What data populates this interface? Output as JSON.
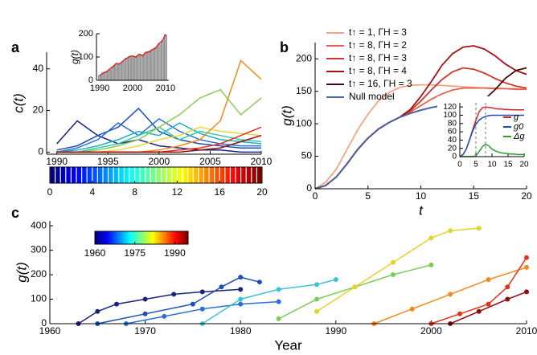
{
  "chart_data": [
    {
      "type": "line",
      "label": "a",
      "y_label": "c(t)",
      "x": [
        1990,
        1992,
        1994,
        1996,
        1998,
        2000,
        2002,
        2004,
        2006,
        2008,
        2010
      ],
      "xlim": [
        1989,
        2010
      ],
      "ylim": [
        -1,
        48
      ],
      "xticks": [
        1990,
        1995,
        2000,
        2005,
        2010
      ],
      "yticks": [
        0,
        20,
        40
      ],
      "colorbar": {
        "colormap": "jet",
        "lim": [
          0,
          20
        ],
        "ticks": [
          0,
          4,
          8,
          12,
          16,
          20
        ]
      },
      "series": [
        {
          "color": "#1a237e",
          "values": [
            4,
            15,
            8,
            4,
            6,
            3,
            2,
            1,
            1,
            0,
            0
          ]
        },
        {
          "color": "#1f4fb4",
          "values": [
            1,
            3,
            8,
            12,
            21,
            10,
            6,
            4,
            3,
            2,
            2
          ]
        },
        {
          "color": "#2a6fd6",
          "values": [
            0,
            2,
            6,
            14,
            8,
            16,
            10,
            6,
            4,
            3,
            3
          ]
        },
        {
          "color": "#1bb1c9",
          "values": [
            0,
            1,
            3,
            6,
            10,
            8,
            14,
            9,
            6,
            5,
            4
          ]
        },
        {
          "color": "#33c9a0",
          "values": [
            0,
            0,
            2,
            4,
            8,
            12,
            6,
            10,
            8,
            6,
            5
          ]
        },
        {
          "color": "#8ccc55",
          "values": [
            0,
            0,
            1,
            3,
            6,
            12,
            18,
            26,
            30,
            18,
            26
          ]
        },
        {
          "color": "#e3d93a",
          "values": [
            0,
            0,
            0,
            1,
            3,
            6,
            8,
            12,
            10,
            9,
            8
          ]
        },
        {
          "color": "#f08a1c",
          "values": [
            0,
            0,
            0,
            0,
            0,
            1,
            3,
            6,
            15,
            44,
            35
          ]
        },
        {
          "color": "#e3321e",
          "values": [
            0,
            0,
            0,
            0,
            0,
            0,
            1,
            2,
            4,
            8,
            12
          ]
        },
        {
          "color": "#8b0f0f",
          "values": [
            0,
            0,
            0,
            0,
            0,
            0,
            0,
            1,
            2,
            5,
            8
          ]
        }
      ]
    },
    {
      "type": "bar",
      "y_label": "g(t)",
      "color": "#aaaaaa",
      "x": [
        1990,
        1991,
        1992,
        1993,
        1994,
        1995,
        1996,
        1997,
        1998,
        1999,
        2000,
        2001,
        2002,
        2003,
        2004,
        2005,
        2006,
        2007,
        2008,
        2009,
        2010
      ],
      "values": [
        22,
        30,
        38,
        45,
        60,
        70,
        72,
        80,
        95,
        100,
        105,
        102,
        110,
        108,
        118,
        125,
        130,
        140,
        155,
        170,
        195
      ],
      "xlim": [
        1989,
        2011
      ],
      "ylim": [
        0,
        200
      ],
      "xticks": [
        1990,
        2000,
        2010
      ],
      "yticks": [
        0,
        100,
        200
      ],
      "series": [
        {
          "color": "#d62728",
          "values": [
            20,
            32,
            36,
            48,
            58,
            72,
            70,
            82,
            92,
            102,
            104,
            100,
            112,
            106,
            120,
            122,
            132,
            138,
            158,
            168,
            198
          ]
        }
      ]
    },
    {
      "type": "line",
      "label": "b",
      "y_label": "g(t)",
      "x_label": "t",
      "legend": "upper left",
      "x": [
        0,
        1,
        2,
        3,
        4,
        5,
        6,
        7,
        8,
        9,
        10,
        11,
        12,
        13,
        14,
        15,
        16,
        17,
        18,
        19,
        20
      ],
      "xlim": [
        0,
        20
      ],
      "ylim": [
        0,
        225
      ],
      "xticks": [
        0,
        5,
        10,
        15,
        20
      ],
      "yticks": [
        0,
        50,
        100,
        150,
        200
      ],
      "series": [
        {
          "name": "t↑ = 1, ΓH = 3",
          "color": "#f4a582",
          "values": [
            0,
            10,
            30,
            60,
            90,
            115,
            135,
            148,
            156,
            159,
            160,
            160,
            159,
            158,
            157,
            156,
            155,
            155,
            154,
            154,
            153
          ]
        },
        {
          "name": "t↑ = 8, ΓH = 2",
          "color": "#e8604a",
          "values": [
            0,
            5,
            18,
            38,
            60,
            78,
            92,
            102,
            110,
            118,
            128,
            138,
            146,
            152,
            155,
            155,
            155,
            154,
            154,
            153,
            153
          ]
        },
        {
          "name": "t↑ = 8, ΓH = 3",
          "color": "#d1352c",
          "values": [
            0,
            5,
            18,
            38,
            60,
            78,
            92,
            102,
            110,
            120,
            135,
            152,
            168,
            180,
            186,
            184,
            178,
            170,
            163,
            158,
            155
          ]
        },
        {
          "name": "t↑ = 8, ΓH = 4",
          "color": "#a50f15",
          "values": [
            0,
            5,
            18,
            38,
            60,
            78,
            92,
            102,
            110,
            122,
            142,
            165,
            190,
            208,
            218,
            220,
            215,
            205,
            192,
            182,
            176
          ]
        },
        {
          "name": "t↑ = 16, ΓH = 3",
          "color": "#4a0a0a",
          "values": [
            0,
            5,
            18,
            38,
            60,
            78,
            92,
            102,
            110,
            116,
            121,
            125,
            128,
            131,
            133,
            135,
            137,
            152,
            170,
            182,
            186
          ]
        },
        {
          "name": "Null model",
          "color": "#4466aa",
          "values": [
            0,
            5,
            18,
            38,
            60,
            78,
            92,
            102,
            110,
            116,
            121,
            125,
            128,
            131,
            133,
            135,
            137,
            138,
            139,
            140,
            141
          ]
        }
      ]
    },
    {
      "type": "line",
      "legend": "right",
      "x": [
        0,
        1,
        2,
        3,
        4,
        5,
        6,
        7,
        8,
        9,
        10,
        11,
        12,
        13,
        14,
        15,
        16,
        17,
        18,
        19,
        20
      ],
      "xlim": [
        0,
        20
      ],
      "ylim": [
        0,
        130
      ],
      "xticks": [
        0,
        5,
        10,
        15,
        20
      ],
      "yticks": [
        0,
        20,
        40,
        60,
        80,
        100,
        120
      ],
      "vlines": [
        5,
        8
      ],
      "series": [
        {
          "name": "g",
          "color": "#d62728",
          "values": [
            0,
            5,
            18,
            40,
            65,
            88,
            108,
            118,
            120,
            119,
            118,
            116,
            115,
            115,
            114,
            114,
            113,
            113,
            113,
            113,
            113
          ]
        },
        {
          "name": "g0",
          "color": "#1f4fb4",
          "values": [
            0,
            5,
            18,
            40,
            62,
            78,
            88,
            94,
            97,
            99,
            100,
            100,
            100,
            100,
            100,
            100,
            100,
            100,
            100,
            100,
            100
          ]
        },
        {
          "name": "Δg",
          "color": "#2ca02c",
          "values": [
            0,
            0,
            0,
            0,
            0,
            2,
            12,
            24,
            30,
            26,
            18,
            14,
            11,
            9,
            8,
            7,
            6,
            6,
            5,
            5,
            5
          ]
        }
      ]
    },
    {
      "type": "line",
      "label": "c",
      "y_label": "g(t)",
      "x_label": "Year",
      "markers": true,
      "xlim": [
        1960,
        2010
      ],
      "ylim": [
        0,
        420
      ],
      "xticks": [
        1960,
        1970,
        1980,
        1990,
        2000,
        2010
      ],
      "yticks": [
        0,
        100,
        200,
        300,
        400
      ],
      "colorbar": {
        "colormap": "jet",
        "lim": [
          1960,
          1995
        ],
        "ticks": [
          1960,
          1975,
          1990
        ]
      },
      "series": [
        {
          "color": "#1a237e",
          "x": [
            1963,
            1965,
            1967,
            1970,
            1973,
            1976,
            1980
          ],
          "values": [
            0,
            50,
            80,
            100,
            120,
            130,
            140
          ]
        },
        {
          "color": "#1f4fb4",
          "x": [
            1965,
            1970,
            1975,
            1978,
            1980,
            1982
          ],
          "values": [
            0,
            40,
            80,
            150,
            190,
            170
          ]
        },
        {
          "color": "#2a6fd6",
          "x": [
            1968,
            1972,
            1976,
            1980,
            1984
          ],
          "values": [
            0,
            30,
            60,
            80,
            90
          ]
        },
        {
          "color": "#3cc3d8",
          "x": [
            1976,
            1980,
            1984,
            1988,
            1990
          ],
          "values": [
            0,
            100,
            140,
            160,
            180
          ]
        },
        {
          "color": "#7ccc55",
          "x": [
            1984,
            1988,
            1992,
            1996,
            2000
          ],
          "values": [
            20,
            100,
            150,
            200,
            240
          ]
        },
        {
          "color": "#e6d22a",
          "x": [
            1988,
            1992,
            1996,
            2000,
            2002,
            2005
          ],
          "values": [
            50,
            150,
            250,
            350,
            380,
            390
          ]
        },
        {
          "color": "#f08a1c",
          "x": [
            1994,
            1998,
            2002,
            2006,
            2010
          ],
          "values": [
            0,
            60,
            120,
            180,
            230
          ]
        },
        {
          "color": "#e3321e",
          "x": [
            2000,
            2003,
            2006,
            2008,
            2010
          ],
          "values": [
            0,
            40,
            80,
            150,
            270
          ]
        },
        {
          "color": "#8b0f0f",
          "x": [
            2002,
            2005,
            2008,
            2010
          ],
          "values": [
            0,
            50,
            100,
            130
          ]
        }
      ]
    }
  ]
}
